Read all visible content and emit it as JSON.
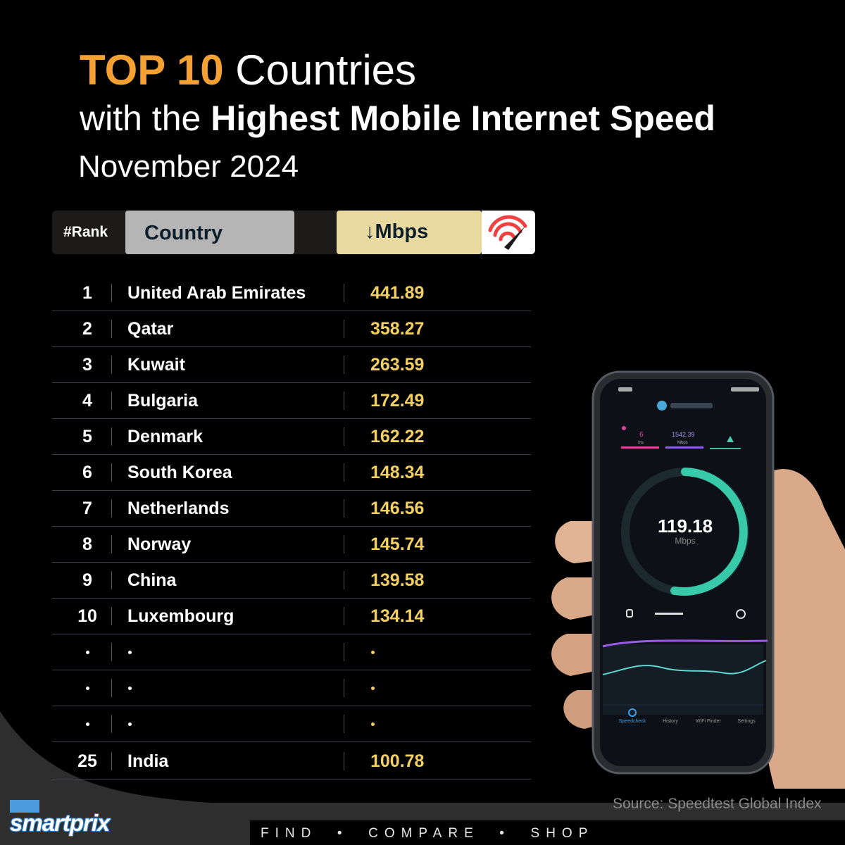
{
  "title": {
    "line1_highlight": "TOP 10",
    "line1_rest": " Countries",
    "line2_prefix": "with the ",
    "line2_bold": "Highest Mobile Internet Speed",
    "line3": "November 2024"
  },
  "header": {
    "rank": "#Rank",
    "country": "Country",
    "mbps": "↓Mbps",
    "icon": "speedometer-icon"
  },
  "chart_data": {
    "type": "table",
    "columns": [
      "#Rank",
      "Country",
      "↓Mbps"
    ],
    "rows": [
      {
        "rank": "1",
        "country": "United Arab Emirates",
        "mbps": "441.89"
      },
      {
        "rank": "2",
        "country": "Qatar",
        "mbps": "358.27"
      },
      {
        "rank": "3",
        "country": "Kuwait",
        "mbps": "263.59"
      },
      {
        "rank": "4",
        "country": "Bulgaria",
        "mbps": "172.49"
      },
      {
        "rank": "5",
        "country": "Denmark",
        "mbps": "162.22"
      },
      {
        "rank": "6",
        "country": "South Korea",
        "mbps": "148.34"
      },
      {
        "rank": "7",
        "country": "Netherlands",
        "mbps": "146.56"
      },
      {
        "rank": "8",
        "country": "Norway",
        "mbps": "145.74"
      },
      {
        "rank": "9",
        "country": "China",
        "mbps": "139.58"
      },
      {
        "rank": "10",
        "country": "Luxembourg",
        "mbps": "134.14"
      },
      {
        "rank": ".",
        "country": ".",
        "mbps": "."
      },
      {
        "rank": ".",
        "country": ".",
        "mbps": "."
      },
      {
        "rank": ".",
        "country": ".",
        "mbps": "."
      },
      {
        "rank": "25",
        "country": "India",
        "mbps": "100.78"
      }
    ]
  },
  "phone": {
    "speed_value": "119.18",
    "speed_unit": "Mbps",
    "ping_value": "6",
    "ping_unit": "ms",
    "download_value": "1542.39",
    "download_unit": "Mbps",
    "nav": [
      "Speedcheck",
      "History",
      "WiFi Finder",
      "Settings"
    ]
  },
  "footer": {
    "source": "Source: Speedtest Global Index",
    "brand": "smartprix",
    "tagline": "FIND  •  COMPARE  •  SHOP"
  },
  "colors": {
    "accent_orange": "#f5a033",
    "value_yellow": "#f4d060",
    "country_header_bg": "#b5b5b5",
    "mbps_header_bg": "#e8d9a0"
  }
}
